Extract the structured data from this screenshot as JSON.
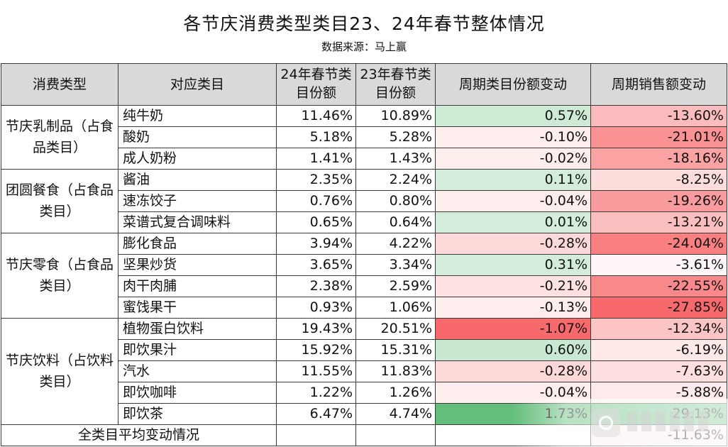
{
  "title": "各节庆消费类型类目23、24年春节整体情况",
  "subtitle": "数据来源：马上赢",
  "headers": [
    "消费类型",
    "对应类目",
    "24年春节类目份额",
    "23年春节类目份额",
    "周期类目份额变动",
    "周期销售额变动"
  ],
  "groups": [
    {
      "category": "节庆乳制品（占食品类目）",
      "rows": [
        {
          "item": "纯牛奶",
          "share24": "11.46%",
          "share23": "10.89%",
          "share_change": "0.57%",
          "sales_change": "-13.60%"
        },
        {
          "item": "酸奶",
          "share24": "5.18%",
          "share23": "5.28%",
          "share_change": "-0.10%",
          "sales_change": "-21.01%"
        },
        {
          "item": "成人奶粉",
          "share24": "1.41%",
          "share23": "1.43%",
          "share_change": "-0.02%",
          "sales_change": "-18.16%"
        }
      ]
    },
    {
      "category": "团圆餐食（占食品类目）",
      "rows": [
        {
          "item": "酱油",
          "share24": "2.35%",
          "share23": "2.24%",
          "share_change": "0.11%",
          "sales_change": "-8.25%"
        },
        {
          "item": "速冻饺子",
          "share24": "0.76%",
          "share23": "0.80%",
          "share_change": "-0.04%",
          "sales_change": "-19.26%"
        },
        {
          "item": "菜谱式复合调味料",
          "share24": "0.65%",
          "share23": "0.64%",
          "share_change": "0.01%",
          "sales_change": "-13.21%"
        }
      ]
    },
    {
      "category": "节庆零食（占食品类目）",
      "rows": [
        {
          "item": "膨化食品",
          "share24": "3.94%",
          "share23": "4.22%",
          "share_change": "-0.28%",
          "sales_change": "-24.04%"
        },
        {
          "item": "坚果炒货",
          "share24": "3.65%",
          "share23": "3.34%",
          "share_change": "0.31%",
          "sales_change": "-3.61%"
        },
        {
          "item": "肉干肉脯",
          "share24": "2.38%",
          "share23": "2.59%",
          "share_change": "-0.21%",
          "sales_change": "-22.55%"
        },
        {
          "item": "蜜饯果干",
          "share24": "0.93%",
          "share23": "1.06%",
          "share_change": "-0.13%",
          "sales_change": "-27.85%"
        }
      ]
    },
    {
      "category": "节庆饮料（占饮料类目）",
      "rows": [
        {
          "item": "植物蛋白饮料",
          "share24": "19.43%",
          "share23": "20.51%",
          "share_change": "-1.07%",
          "sales_change": "-12.34%"
        },
        {
          "item": "即饮果汁",
          "share24": "15.92%",
          "share23": "15.31%",
          "share_change": "0.60%",
          "sales_change": "-6.19%"
        },
        {
          "item": "汽水",
          "share24": "11.55%",
          "share23": "11.83%",
          "share_change": "-0.28%",
          "sales_change": "-7.63%"
        },
        {
          "item": "即饮咖啡",
          "share24": "1.22%",
          "share23": "1.26%",
          "share_change": "-0.04%",
          "sales_change": "-5.88%"
        },
        {
          "item": "即饮茶",
          "share24": "6.47%",
          "share23": "4.74%",
          "share_change": "1.73%",
          "sales_change": "29.13%"
        }
      ]
    }
  ],
  "summary": {
    "label": "全类目平均变动情况",
    "sales_change": "-11.63%"
  },
  "colors": {
    "header_bg": "#d9d9d9",
    "positive_strong": "#63be7b",
    "positive_light": "#e3f2e6",
    "negative_strong": "#f8696b",
    "negative_light": "#fde8e8",
    "neutral": "#ffffff"
  }
}
